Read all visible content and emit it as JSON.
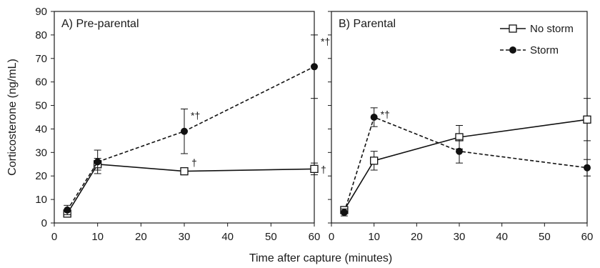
{
  "chart_data": [
    {
      "type": "line",
      "title": "A) Pre-parental",
      "xlabel": "Time after capture (minutes)",
      "ylabel": "Corticosterone (ng/mL)",
      "xlim": [
        0,
        60
      ],
      "ylim": [
        0,
        90
      ],
      "xticks": [
        "0",
        "10",
        "20",
        "30",
        "40",
        "50",
        "60"
      ],
      "yticks": [
        "0",
        "10",
        "20",
        "30",
        "40",
        "50",
        "60",
        "70",
        "80",
        "90"
      ],
      "series": [
        {
          "name": "No storm",
          "style": "solid",
          "marker": "open-square",
          "points": [
            {
              "x": 3,
              "y": 4,
              "err": 1.5
            },
            {
              "x": 10,
              "y": 25,
              "err": 2.5
            },
            {
              "x": 30,
              "y": 22,
              "err": 1.5
            },
            {
              "x": 60,
              "y": 23,
              "err": 2.5,
              "annot": "†"
            }
          ]
        },
        {
          "name": "Storm",
          "style": "dashed",
          "marker": "filled-circle",
          "points": [
            {
              "x": 3,
              "y": 5.5,
              "err": 2
            },
            {
              "x": 10,
              "y": 26,
              "err": 5
            },
            {
              "x": 30,
              "y": 39,
              "err": 9.5,
              "annot": "*†"
            },
            {
              "x": 60,
              "y": 66.5,
              "err": 13.5,
              "annot": "*†"
            }
          ]
        }
      ],
      "extra_annotations": [
        {
          "x": 30,
          "y": 22,
          "text": "†"
        }
      ]
    },
    {
      "type": "line",
      "title": "B) Parental",
      "xlim": [
        0,
        60
      ],
      "ylim": [
        0,
        90
      ],
      "xticks": [
        "0",
        "10",
        "20",
        "30",
        "40",
        "50",
        "60"
      ],
      "legend": {
        "placement": "top-right",
        "entries": [
          "No storm",
          "Storm"
        ]
      },
      "series": [
        {
          "name": "No storm",
          "style": "solid",
          "marker": "open-square",
          "points": [
            {
              "x": 3,
              "y": 5.5,
              "err": 1.5
            },
            {
              "x": 10,
              "y": 26.5,
              "err": 4
            },
            {
              "x": 30,
              "y": 36.5,
              "err": 5
            },
            {
              "x": 60,
              "y": 44,
              "err": 9
            }
          ]
        },
        {
          "name": "Storm",
          "style": "dashed",
          "marker": "filled-circle",
          "points": [
            {
              "x": 3,
              "y": 4.5,
              "err": 1.5
            },
            {
              "x": 10,
              "y": 45,
              "err": 4,
              "annot": "*†"
            },
            {
              "x": 30,
              "y": 30.5,
              "err": 5
            },
            {
              "x": 60,
              "y": 23.5,
              "err": 3.5
            }
          ]
        }
      ]
    }
  ]
}
